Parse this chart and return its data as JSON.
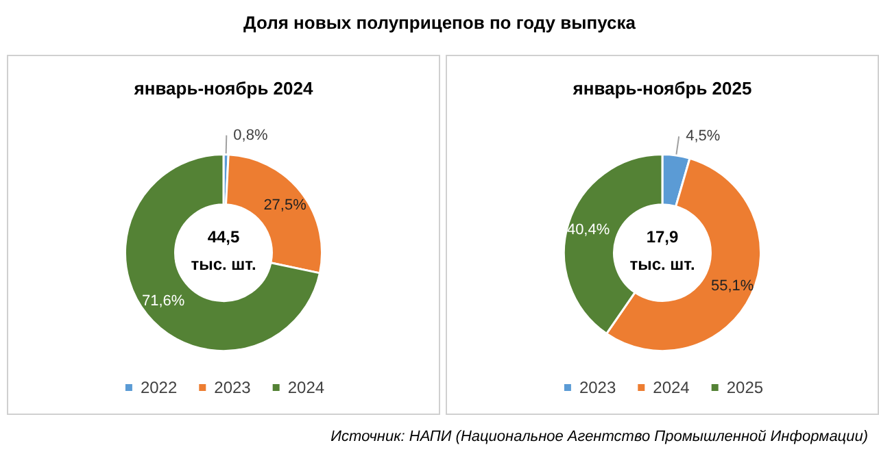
{
  "chart_data": [
    {
      "type": "donut",
      "title": "Доля новых полуприцепов по году выпуска",
      "subtitle": "январь-ноябрь 2024",
      "categories": [
        "2022",
        "2023",
        "2024"
      ],
      "values": [
        0.8,
        27.5,
        71.6
      ],
      "colors": [
        "#5b9bd5",
        "#ed7d31",
        "#548235"
      ],
      "value_labels": [
        "0,8%",
        "27,5%",
        "71,6%"
      ],
      "legend": "bottom",
      "annotations": [
        "44,5",
        "тыс. шт."
      ]
    },
    {
      "type": "donut",
      "subtitle": "январь-ноябрь 2025",
      "categories": [
        "2023",
        "2024",
        "2025"
      ],
      "values": [
        4.5,
        55.1,
        40.4
      ],
      "colors": [
        "#5b9bd5",
        "#ed7d31",
        "#548235"
      ],
      "value_labels": [
        "4,5%",
        "55,1%",
        "40,4%"
      ],
      "legend": "bottom",
      "annotations": [
        "17,9",
        "тыс. шт.",
        "Источник: НАПИ (Национальное Агентство Промышленной Информации)"
      ]
    }
  ]
}
